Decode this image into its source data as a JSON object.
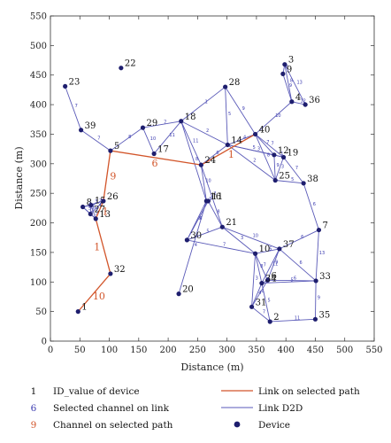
{
  "chart_data": {
    "type": "scatter",
    "title": "",
    "xlabel": "Distance (m)",
    "ylabel": "Distance (m)",
    "xlim": [
      0,
      550
    ],
    "ylim": [
      0,
      550
    ],
    "xticks": [
      0,
      50,
      100,
      150,
      200,
      250,
      300,
      350,
      400,
      450,
      500,
      550
    ],
    "yticks": [
      0,
      50,
      100,
      150,
      200,
      250,
      300,
      350,
      400,
      450,
      500,
      550
    ],
    "colors": {
      "d2d": "#5a5ab8",
      "selected_path": "#d2552a",
      "device": "#1e1e6e"
    },
    "devices": [
      {
        "id": "1",
        "x": 47,
        "y": 50
      },
      {
        "id": "2",
        "x": 373,
        "y": 33
      },
      {
        "id": "3",
        "x": 398,
        "y": 468
      },
      {
        "id": "4",
        "x": 410,
        "y": 405
      },
      {
        "id": "5",
        "x": 102,
        "y": 322
      },
      {
        "id": "6",
        "x": 369,
        "y": 103
      },
      {
        "id": "7",
        "x": 456,
        "y": 188
      },
      {
        "id": "8",
        "x": 55,
        "y": 227
      },
      {
        "id": "9",
        "x": 395,
        "y": 452
      },
      {
        "id": "10",
        "x": 348,
        "y": 148
      },
      {
        "id": "11",
        "x": 268,
        "y": 237
      },
      {
        "id": "12",
        "x": 380,
        "y": 315
      },
      {
        "id": "13",
        "x": 77,
        "y": 207
      },
      {
        "id": "14",
        "x": 301,
        "y": 332
      },
      {
        "id": "15",
        "x": 69,
        "y": 230
      },
      {
        "id": "16",
        "x": 265,
        "y": 237
      },
      {
        "id": "17",
        "x": 176,
        "y": 317
      },
      {
        "id": "18",
        "x": 222,
        "y": 372
      },
      {
        "id": "19",
        "x": 396,
        "y": 311
      },
      {
        "id": "20",
        "x": 218,
        "y": 80
      },
      {
        "id": "21",
        "x": 292,
        "y": 193
      },
      {
        "id": "22",
        "x": 120,
        "y": 462
      },
      {
        "id": "23",
        "x": 25,
        "y": 431
      },
      {
        "id": "24",
        "x": 256,
        "y": 298
      },
      {
        "id": "25",
        "x": 382,
        "y": 272
      },
      {
        "id": "26",
        "x": 90,
        "y": 237
      },
      {
        "id": "27",
        "x": 68,
        "y": 215
      },
      {
        "id": "28",
        "x": 297,
        "y": 430
      },
      {
        "id": "29",
        "x": 157,
        "y": 361
      },
      {
        "id": "30",
        "x": 232,
        "y": 171
      },
      {
        "id": "31",
        "x": 342,
        "y": 58
      },
      {
        "id": "32",
        "x": 102,
        "y": 114
      },
      {
        "id": "33",
        "x": 451,
        "y": 102
      },
      {
        "id": "34",
        "x": 359,
        "y": 98
      },
      {
        "id": "35",
        "x": 450,
        "y": 37
      },
      {
        "id": "36",
        "x": 433,
        "y": 400
      },
      {
        "id": "37",
        "x": 389,
        "y": 156
      },
      {
        "id": "38",
        "x": 430,
        "y": 267
      },
      {
        "id": "39",
        "x": 52,
        "y": 357
      },
      {
        "id": "40",
        "x": 348,
        "y": 350
      }
    ],
    "selected_path": [
      {
        "from": "1",
        "to": "32",
        "channel": "10"
      },
      {
        "from": "32",
        "to": "13",
        "channel": "1"
      },
      {
        "from": "13",
        "to": "26",
        "channel": "1"
      },
      {
        "from": "26",
        "to": "5",
        "channel": "9"
      },
      {
        "from": "5",
        "to": "24",
        "channel": "6"
      },
      {
        "from": "24",
        "to": "40",
        "channel": "1"
      }
    ],
    "d2d_links": [
      {
        "from": "23",
        "to": "39",
        "channel": "7"
      },
      {
        "from": "39",
        "to": "5",
        "channel": "7"
      },
      {
        "from": "5",
        "to": "29",
        "channel": "8"
      },
      {
        "from": "29",
        "to": "18",
        "channel": "7"
      },
      {
        "from": "29",
        "to": "17",
        "channel": "10"
      },
      {
        "from": "18",
        "to": "17",
        "channel": "11"
      },
      {
        "from": "18",
        "to": "24",
        "channel": "11"
      },
      {
        "from": "18",
        "to": "28",
        "channel": "1"
      },
      {
        "from": "18",
        "to": "14",
        "channel": "2"
      },
      {
        "from": "18",
        "to": "16",
        "channel": "8"
      },
      {
        "from": "28",
        "to": "40",
        "channel": "9"
      },
      {
        "from": "28",
        "to": "14",
        "channel": "5"
      },
      {
        "from": "24",
        "to": "14",
        "channel": "6"
      },
      {
        "from": "24",
        "to": "16",
        "channel": "10"
      },
      {
        "from": "24",
        "to": "21",
        "channel": "2"
      },
      {
        "from": "14",
        "to": "40",
        "channel": "4"
      },
      {
        "from": "14",
        "to": "12",
        "channel": "5"
      },
      {
        "from": "14",
        "to": "19",
        "channel": "3"
      },
      {
        "from": "14",
        "to": "25",
        "channel": "2"
      },
      {
        "from": "40",
        "to": "4",
        "channel": "10"
      },
      {
        "from": "40",
        "to": "12",
        "channel": "7"
      },
      {
        "from": "40",
        "to": "19",
        "channel": "7"
      },
      {
        "from": "40",
        "to": "25",
        "channel": "8"
      },
      {
        "from": "12",
        "to": "19",
        "channel": "1"
      },
      {
        "from": "12",
        "to": "25",
        "channel": "9"
      },
      {
        "from": "19",
        "to": "25",
        "channel": "3"
      },
      {
        "from": "19",
        "to": "38",
        "channel": "7"
      },
      {
        "from": "25",
        "to": "38",
        "channel": "5"
      },
      {
        "from": "38",
        "to": "7",
        "channel": "6"
      },
      {
        "from": "9",
        "to": "3",
        "channel": "6"
      },
      {
        "from": "9",
        "to": "4",
        "channel": "9"
      },
      {
        "from": "3",
        "to": "4",
        "channel": "8"
      },
      {
        "from": "3",
        "to": "36",
        "channel": "13"
      },
      {
        "from": "4",
        "to": "36",
        "channel": "12"
      },
      {
        "from": "16",
        "to": "11",
        "channel": "9"
      },
      {
        "from": "16",
        "to": "30",
        "channel": "3"
      },
      {
        "from": "11",
        "to": "30",
        "channel": "4"
      },
      {
        "from": "11",
        "to": "21",
        "channel": "8"
      },
      {
        "from": "16",
        "to": "20",
        "channel": "4"
      },
      {
        "from": "30",
        "to": "21",
        "channel": "5"
      },
      {
        "from": "30",
        "to": "10",
        "channel": "7"
      },
      {
        "from": "21",
        "to": "10",
        "channel": "3"
      },
      {
        "from": "21",
        "to": "37",
        "channel": "10"
      },
      {
        "from": "10",
        "to": "37",
        "channel": "5"
      },
      {
        "from": "10",
        "to": "6",
        "channel": "7"
      },
      {
        "from": "10",
        "to": "34",
        "channel": "8"
      },
      {
        "from": "10",
        "to": "31",
        "channel": "3"
      },
      {
        "from": "37",
        "to": "7",
        "channel": "6"
      },
      {
        "from": "37",
        "to": "6",
        "channel": "9"
      },
      {
        "from": "37",
        "to": "34",
        "channel": "11"
      },
      {
        "from": "37",
        "to": "33",
        "channel": "6"
      },
      {
        "from": "7",
        "to": "33",
        "channel": "13"
      },
      {
        "from": "6",
        "to": "34",
        "channel": "2"
      },
      {
        "from": "6",
        "to": "33",
        "channel": "6"
      },
      {
        "from": "6",
        "to": "31",
        "channel": "4"
      },
      {
        "from": "34",
        "to": "33",
        "channel": "5"
      },
      {
        "from": "34",
        "to": "31",
        "channel": "4"
      },
      {
        "from": "34",
        "to": "2",
        "channel": "5"
      },
      {
        "from": "31",
        "to": "2",
        "channel": "7"
      },
      {
        "from": "33",
        "to": "35",
        "channel": "9"
      },
      {
        "from": "2",
        "to": "35",
        "channel": "11"
      },
      {
        "from": "8",
        "to": "15",
        "channel": "4"
      },
      {
        "from": "8",
        "to": "26",
        "channel": "3"
      },
      {
        "from": "8",
        "to": "27",
        "channel": "5"
      },
      {
        "from": "8",
        "to": "13",
        "channel": "2"
      },
      {
        "from": "15",
        "to": "26",
        "channel": "2"
      },
      {
        "from": "15",
        "to": "27",
        "channel": "6"
      },
      {
        "from": "15",
        "to": "13",
        "channel": "3"
      },
      {
        "from": "26",
        "to": "27",
        "channel": "4"
      },
      {
        "from": "27",
        "to": "13",
        "channel": "7"
      }
    ],
    "legend": [
      {
        "marker": "1",
        "label": "ID_value of device",
        "kind": "id"
      },
      {
        "marker": "6",
        "label": "Selected channel on link",
        "kind": "channel"
      },
      {
        "marker": "9",
        "label": "Channel on selected path",
        "kind": "selected_channel"
      },
      {
        "marker": "",
        "label": "Link on selected path",
        "kind": "selected_line"
      },
      {
        "marker": "",
        "label": "Link D2D",
        "kind": "d2d_line"
      },
      {
        "marker": "",
        "label": "Device",
        "kind": "device_marker"
      }
    ]
  }
}
